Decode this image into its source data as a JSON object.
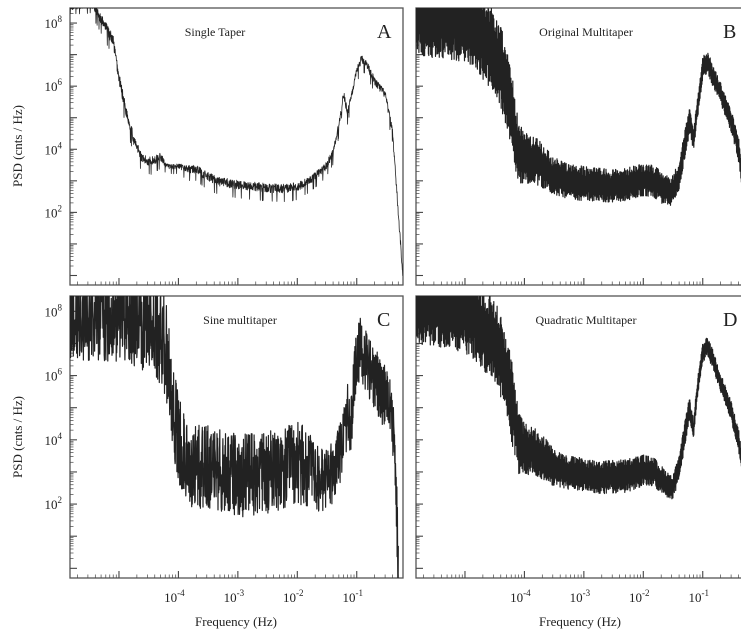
{
  "chart_data": {
    "type": "line",
    "figure_layout": "2x2 grid of log-log spectral plots",
    "shared_axes": {
      "xlabel": "Frequency (Hz)",
      "ylabel": "PSD (cnts / Hz)",
      "xscale": "log",
      "yscale": "log",
      "xlim": [
        1.5e-06,
        0.6
      ],
      "ylim": [
        0.5,
        300000000.0
      ],
      "xticks": [
        0.0001,
        0.001,
        0.01,
        0.1
      ],
      "xtick_labels": [
        [
          "10",
          "-4"
        ],
        [
          "10",
          "-3"
        ],
        [
          "10",
          "-2"
        ],
        [
          "10",
          "-1"
        ]
      ],
      "yticks": [
        100,
        10000,
        1000000,
        100000000
      ],
      "ytick_labels": [
        [
          "10",
          "2"
        ],
        [
          "10",
          "4"
        ],
        [
          "10",
          "6"
        ],
        [
          "10",
          "8"
        ]
      ]
    },
    "panels": [
      {
        "letter": "A",
        "title": "Single Taper",
        "style": "noisy",
        "x": [
          1.5e-06,
          2.6e-06,
          3.4e-06,
          4e-06,
          6e-06,
          8e-06,
          1e-05,
          1.3e-05,
          1.8e-05,
          2.5e-05,
          3.5e-05,
          5e-05,
          6.5e-05,
          0.0001,
          0.00015,
          0.0002,
          0.0003,
          0.0005,
          0.001,
          0.002,
          0.003,
          0.005,
          0.008,
          0.01,
          0.015,
          0.02,
          0.03,
          0.04,
          0.05,
          0.06,
          0.07,
          0.08,
          0.1,
          0.12,
          0.15,
          0.2,
          0.3,
          0.4,
          0.5,
          0.6
        ],
        "y": [
          300000000.0,
          400000000.0,
          450000000.0,
          300000000.0,
          80000000.0,
          30000000.0,
          2000000.0,
          200000.0,
          20000.0,
          5000,
          4500,
          6000,
          3000,
          3000,
          2500,
          2500,
          1500,
          1000,
          800,
          700,
          650,
          600,
          650,
          700,
          1000,
          1500,
          3000,
          8000,
          60000,
          600000,
          150000,
          500000,
          3000000,
          8000000,
          5000000,
          1500000,
          600000,
          40000,
          100,
          1
        ],
        "scatter": [
          1.2,
          1.4,
          1.4,
          1.6,
          1.7,
          1.8,
          1.8,
          1.8,
          1.7,
          1.6,
          1.6,
          1.5,
          1.3,
          1.3,
          1.5,
          1.5,
          1.6,
          1.6,
          1.6,
          1.6,
          1.6,
          1.6,
          1.6,
          1.6,
          1.5,
          1.5,
          1.5,
          1.5,
          1.5,
          1.5,
          1.5,
          1.5,
          1.5,
          1.5,
          1.5,
          1.5,
          1.5,
          1.5,
          1.5,
          1.5
        ]
      },
      {
        "letter": "B",
        "title": "Original Multitaper",
        "style": "banded",
        "x": [
          1.5e-06,
          3e-06,
          5e-06,
          1e-05,
          1.5e-05,
          2e-05,
          3e-05,
          4e-05,
          5e-05,
          6e-05,
          7e-05,
          8e-05,
          0.0001,
          0.00015,
          0.0002,
          0.0003,
          0.0005,
          0.001,
          0.002,
          0.003,
          0.005,
          0.01,
          0.015,
          0.02,
          0.03,
          0.04,
          0.05,
          0.06,
          0.07,
          0.08,
          0.1,
          0.12,
          0.15,
          0.2,
          0.3,
          0.4,
          0.5,
          0.6
        ],
        "y": [
          180000000.0,
          160000000.0,
          150000000.0,
          100000000.0,
          60000000.0,
          30000000.0,
          15000000.0,
          4000000.0,
          1000000.0,
          200000.0,
          30000.0,
          8000,
          5000,
          4500,
          3000,
          1500,
          1000,
          800,
          700,
          700,
          750,
          1100,
          1000,
          600,
          450,
          1500,
          15000,
          80000,
          20000,
          150000,
          4000000,
          6000000,
          2000000,
          600000,
          80000,
          10000,
          500,
          3
        ],
        "scatter": [
          0.05,
          0.05,
          0.05,
          0.05,
          0.05,
          0.05,
          0.05,
          0.05,
          0.05,
          0.05,
          0.08,
          0.1,
          0.15,
          0.18,
          0.2,
          0.25,
          0.28,
          0.28,
          0.28,
          0.3,
          0.3,
          0.3,
          0.3,
          0.32,
          0.35,
          0.35,
          0.35,
          0.4,
          0.45,
          0.45,
          0.45,
          0.45,
          0.45,
          0.45,
          0.45,
          0.4,
          0.35,
          0.3
        ]
      },
      {
        "letter": "C",
        "title": "Sine multitaper",
        "style": "smooth",
        "x": [
          1.5e-06,
          3e-06,
          5e-06,
          1e-05,
          1.5e-05,
          2e-05,
          3e-05,
          4e-05,
          5e-05,
          6e-05,
          7e-05,
          8e-05,
          0.0001,
          0.00013,
          0.00015,
          0.0002,
          0.0003,
          0.0005,
          0.001,
          0.002,
          0.003,
          0.005,
          0.008,
          0.01,
          0.015,
          0.02,
          0.03,
          0.04,
          0.05,
          0.06,
          0.07,
          0.08,
          0.1,
          0.12,
          0.15,
          0.2,
          0.3,
          0.4,
          0.45,
          0.5
        ],
        "y": [
          100000000.0,
          100000000.0,
          90000000.0,
          80000000.0,
          70000000.0,
          60000000.0,
          40000000.0,
          25000000.0,
          15000000.0,
          8000000.0,
          2000000.0,
          200000.0,
          8000,
          3000,
          1800,
          1400,
          1500,
          1200,
          800,
          800,
          900,
          1300,
          2000,
          2000,
          1200,
          700,
          500,
          1000,
          3000,
          8000,
          60000,
          30000,
          5000000,
          7000000,
          2000000,
          800000,
          200000,
          50000,
          1000,
          1
        ],
        "scatter": [
          0.03,
          0.03,
          0.03,
          0.03,
          0.03,
          0.03,
          0.03,
          0.03,
          0.03,
          0.03,
          0.03,
          0.03,
          0.03,
          0.05,
          0.05,
          0.05,
          0.05,
          0.05,
          0.05,
          0.05,
          0.05,
          0.05,
          0.05,
          0.05,
          0.06,
          0.08,
          0.1,
          0.1,
          0.1,
          0.1,
          0.1,
          0.1,
          0.1,
          0.1,
          0.1,
          0.1,
          0.1,
          0.1,
          0.1,
          0.05
        ]
      },
      {
        "letter": "D",
        "title": "Quadratic Multitaper",
        "style": "banded",
        "x": [
          1.5e-06,
          3e-06,
          5e-06,
          1e-05,
          1.5e-05,
          2e-05,
          3e-05,
          4e-05,
          5e-05,
          6e-05,
          7e-05,
          8e-05,
          0.0001,
          0.00015,
          0.0002,
          0.0003,
          0.0005,
          0.001,
          0.002,
          0.003,
          0.005,
          0.01,
          0.015,
          0.02,
          0.03,
          0.04,
          0.05,
          0.06,
          0.07,
          0.08,
          0.1,
          0.12,
          0.15,
          0.2,
          0.3,
          0.4,
          0.5,
          0.6
        ],
        "y": [
          180000000.0,
          160000000.0,
          150000000.0,
          100000000.0,
          60000000.0,
          30000000.0,
          15000000.0,
          4000000.0,
          1000000.0,
          200000.0,
          30000.0,
          8000,
          5000,
          4500,
          3000,
          1500,
          1000,
          800,
          700,
          700,
          750,
          1100,
          1000,
          600,
          300,
          1200,
          15000,
          100000,
          20000,
          300000,
          5000000,
          8000000,
          3000000,
          600000,
          80000,
          10000,
          500,
          3
        ],
        "scatter": [
          0.05,
          0.05,
          0.05,
          0.05,
          0.05,
          0.05,
          0.05,
          0.05,
          0.05,
          0.05,
          0.08,
          0.1,
          0.15,
          0.18,
          0.2,
          0.25,
          0.3,
          0.3,
          0.3,
          0.3,
          0.3,
          0.32,
          0.35,
          0.38,
          0.4,
          0.4,
          0.4,
          0.45,
          0.5,
          0.5,
          0.5,
          0.5,
          0.5,
          0.5,
          0.5,
          0.45,
          0.4,
          0.35
        ]
      }
    ]
  }
}
